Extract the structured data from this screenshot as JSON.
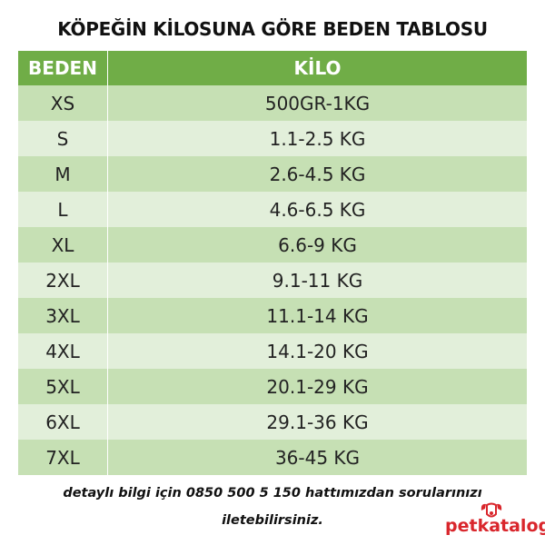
{
  "title": "KÖPEĞİN KİLOSUNA GÖRE BEDEN TABLOSU",
  "table": {
    "headers": [
      "BEDEN",
      "KİLO"
    ],
    "rows": [
      [
        "XS",
        "500GR-1KG"
      ],
      [
        "S",
        "1.1-2.5 KG"
      ],
      [
        "M",
        "2.6-4.5 KG"
      ],
      [
        "L",
        "4.6-6.5 KG"
      ],
      [
        "XL",
        "6.6-9 KG"
      ],
      [
        "2XL",
        "9.1-11 KG"
      ],
      [
        "3XL",
        "11.1-14 KG"
      ],
      [
        "4XL",
        "14.1-20 KG"
      ],
      [
        "5XL",
        "20.1-29 KG"
      ],
      [
        "6XL",
        "29.1-36 KG"
      ],
      [
        "7XL",
        "36-45 KG"
      ]
    ]
  },
  "footer": {
    "line1": "detaylı bilgi için 0850 500 5 150 hattımızdan sorularınızı",
    "line2": "iletebilirsiniz."
  },
  "logo": {
    "text": "petkatalog",
    "color": "#d9262c"
  },
  "colors": {
    "header": "#70ad47",
    "row_dark": "#c6e0b4",
    "row_light": "#e2efda"
  }
}
